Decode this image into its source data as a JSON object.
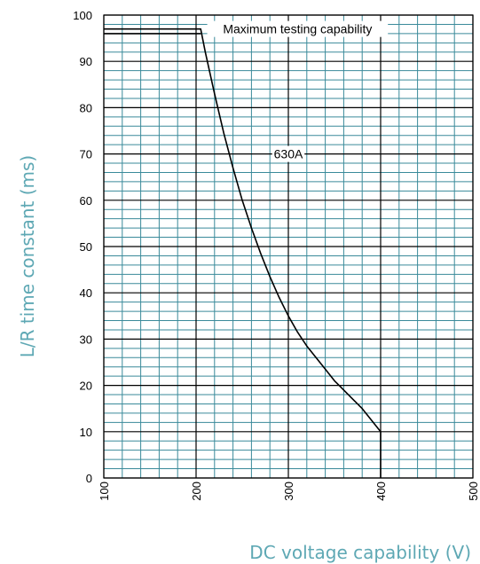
{
  "chart_data": {
    "type": "line",
    "xlabel": "DC voltage capability (V)",
    "ylabel": "L/R time constant (ms)",
    "xlim": [
      100,
      500
    ],
    "ylim": [
      0,
      100
    ],
    "x_ticks": [
      "100",
      "200",
      "300",
      "400",
      "500"
    ],
    "y_ticks": [
      "0",
      "10",
      "20",
      "30",
      "40",
      "50",
      "60",
      "70",
      "80",
      "90",
      "100"
    ],
    "grid": true,
    "minor_grid": {
      "x_step": 20,
      "y_step": 2
    },
    "series": [
      {
        "name": "630A",
        "x": [
          100,
          205,
          210,
          220,
          230,
          240,
          250,
          260,
          270,
          280,
          290,
          300,
          310,
          320,
          330,
          340,
          350,
          360,
          370,
          380,
          390,
          400,
          400
        ],
        "y": [
          97,
          97,
          92,
          83,
          74.5,
          67,
          60,
          54,
          48.5,
          43.5,
          39,
          35,
          31.5,
          28.5,
          26,
          23.5,
          21,
          19,
          17,
          15,
          12.5,
          10,
          0
        ]
      },
      {
        "name": "",
        "x": [
          100,
          205
        ],
        "y": [
          96,
          96
        ]
      }
    ],
    "annotations": [
      {
        "text": "Maximum testing capability",
        "x": 310,
        "y": 97
      },
      {
        "text": "630A",
        "x": 300,
        "y": 70
      }
    ],
    "colors": {
      "major_grid": "#000000",
      "minor_grid": "#3a8a9a",
      "line": "#000000",
      "axis_label": "#5ea8b4",
      "tick_label": "#000000"
    }
  }
}
